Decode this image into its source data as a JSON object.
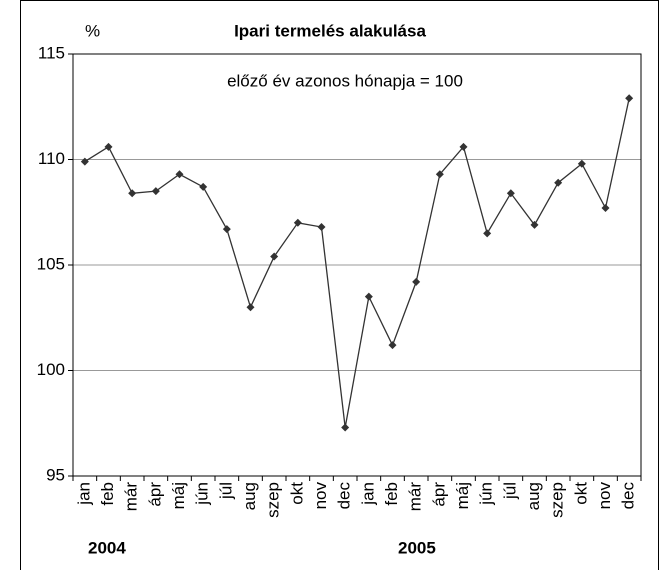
{
  "chart_data": {
    "type": "line",
    "title": "Ipari termelés alakulása",
    "y_unit": "%",
    "annotation": "előző év azonos hónapja = 100",
    "year_labels": [
      "2004",
      "2005"
    ],
    "categories": [
      "jan",
      "feb",
      "már",
      "ápr",
      "máj",
      "jún",
      "júl",
      "aug",
      "szep",
      "okt",
      "nov",
      "dec",
      "jan",
      "feb",
      "már",
      "ápr",
      "máj",
      "jún",
      "júl",
      "aug",
      "szep",
      "okt",
      "nov",
      "dec"
    ],
    "series": [
      {
        "color": "#333333",
        "values": [
          109.9,
          110.6,
          108.4,
          108.5,
          109.3,
          108.7,
          106.7,
          103.0,
          105.4,
          107.0,
          106.8,
          97.3,
          103.5,
          101.2,
          104.2,
          109.3,
          110.6,
          106.5,
          108.4,
          106.9,
          108.9,
          109.8,
          107.7,
          112.9
        ]
      }
    ],
    "ylim": [
      95,
      115
    ],
    "yticks": [
      95,
      100,
      105,
      110,
      115
    ],
    "grid": true
  }
}
